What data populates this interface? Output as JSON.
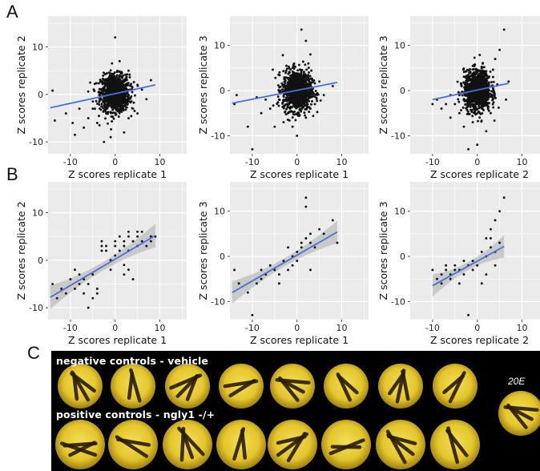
{
  "figure": {
    "panel_a_letter": "A",
    "panel_b_letter": "B",
    "panel_c_letter": "C"
  },
  "colors": {
    "plot_background": "#ebebeb",
    "grid": "#ffffff",
    "point": "#111111",
    "fit_line": "#4a6fd6",
    "confidence_band": "#bdbdbd",
    "well_yellow": "#e6cc33"
  },
  "chart_data": [
    {
      "id": "A1",
      "type": "scatter",
      "xlabel": "Z scores replicate 1",
      "ylabel": "Z scores replicate 2",
      "xlim": [
        -15,
        16
      ],
      "ylim": [
        -12.5,
        16.5
      ],
      "xticks": [
        -10,
        0,
        10
      ],
      "yticks": [
        -10,
        0,
        10
      ],
      "grid": true,
      "fit": {
        "x": [
          -14.5,
          9
        ],
        "y": [
          -2.8,
          2.0
        ]
      },
      "confidence_band": false,
      "points": {
        "cloud": {
          "n": 1100,
          "cx": 0,
          "cy": 0.3,
          "sx": 1.6,
          "sy": 1.9
        },
        "outliers": [
          [
            -13.5,
            -5.5
          ],
          [
            -14,
            0.8
          ],
          [
            -9,
            -8.5
          ],
          [
            -7,
            -7
          ],
          [
            -6,
            -5
          ],
          [
            -5,
            -3
          ],
          [
            -4,
            -6
          ],
          [
            -3,
            -2
          ],
          [
            -2,
            -4
          ],
          [
            -8,
            -3
          ],
          [
            -5,
            -1.5
          ],
          [
            -3.5,
            -6.5
          ],
          [
            -1,
            -9
          ],
          [
            0,
            12
          ],
          [
            1,
            7
          ],
          [
            3,
            -5
          ],
          [
            4,
            -3
          ],
          [
            5,
            2
          ],
          [
            6,
            1
          ],
          [
            8,
            3
          ],
          [
            7,
            -1
          ],
          [
            -11,
            -4
          ],
          [
            -9.5,
            -6
          ],
          [
            2,
            -8
          ],
          [
            -2.5,
            -10
          ],
          [
            5,
            -4
          ],
          [
            3,
            5
          ]
        ]
      }
    },
    {
      "id": "A2",
      "type": "scatter",
      "xlabel": "Z scores replicate 1",
      "ylabel": "Z scores replicate 3",
      "xlim": [
        -15,
        16
      ],
      "ylim": [
        -14,
        16.5
      ],
      "xticks": [
        -10,
        0,
        10
      ],
      "yticks": [
        -10,
        0,
        10
      ],
      "grid": true,
      "fit": {
        "x": [
          -14.5,
          9
        ],
        "y": [
          -2.8,
          1.8
        ]
      },
      "confidence_band": false,
      "points": {
        "cloud": {
          "n": 1100,
          "cx": 0,
          "cy": 0,
          "sx": 1.6,
          "sy": 2.2
        },
        "outliers": [
          [
            -13.5,
            -1
          ],
          [
            -14,
            -3
          ],
          [
            -11,
            -8
          ],
          [
            -10,
            -13
          ],
          [
            -8,
            -5
          ],
          [
            -6,
            -4
          ],
          [
            -4,
            -2
          ],
          [
            -3,
            -7
          ],
          [
            -2,
            -5
          ],
          [
            -1,
            -8
          ],
          [
            1,
            13.5
          ],
          [
            2,
            11
          ],
          [
            3,
            8
          ],
          [
            4,
            -3
          ],
          [
            5,
            2
          ],
          [
            6,
            -1
          ],
          [
            8,
            1
          ],
          [
            -7,
            -2
          ],
          [
            -5,
            -8
          ],
          [
            0,
            -10
          ],
          [
            2,
            -6
          ],
          [
            -9,
            -1.5
          ]
        ]
      }
    },
    {
      "id": "A3",
      "type": "scatter",
      "xlabel": "Z scores replicate 2",
      "ylabel": "Z scores replicate 3",
      "xlim": [
        -15,
        16
      ],
      "ylim": [
        -14,
        16.5
      ],
      "xticks": [
        -10,
        0,
        10
      ],
      "yticks": [
        -10,
        0,
        10
      ],
      "grid": true,
      "fit": {
        "x": [
          -10,
          7
        ],
        "y": [
          -2.0,
          1.6
        ]
      },
      "confidence_band": false,
      "points": {
        "cloud": {
          "n": 1100,
          "cx": 0,
          "cy": 0,
          "sx": 1.5,
          "sy": 2.2
        },
        "outliers": [
          [
            -10,
            -3
          ],
          [
            -9,
            -2
          ],
          [
            -8,
            -4
          ],
          [
            -7,
            -3
          ],
          [
            -6,
            -6
          ],
          [
            -5,
            -3
          ],
          [
            -4,
            -1
          ],
          [
            -3,
            -8
          ],
          [
            -2,
            -13
          ],
          [
            -1,
            -7
          ],
          [
            6,
            13.5
          ],
          [
            5,
            9
          ],
          [
            4,
            7
          ],
          [
            3,
            -5
          ],
          [
            2,
            -9
          ],
          [
            -6,
            -1
          ],
          [
            -4,
            -5
          ],
          [
            7,
            2
          ],
          [
            0,
            -12
          ]
        ]
      }
    },
    {
      "id": "B1",
      "type": "scatter",
      "xlabel": "Z scores replicate 1",
      "ylabel": "Z scores replicate 2",
      "xlim": [
        -15,
        16
      ],
      "ylim": [
        -12.5,
        16.5
      ],
      "xticks": [
        -10,
        0,
        10
      ],
      "yticks": [
        -10,
        0,
        10
      ],
      "grid": true,
      "fit": {
        "x": [
          -14.5,
          9
        ],
        "y": [
          -7.8,
          5.2
        ]
      },
      "confidence_band": true,
      "points": [
        [
          -14,
          -5
        ],
        [
          -13,
          -8
        ],
        [
          -12,
          -6
        ],
        [
          -11,
          -7
        ],
        [
          -10,
          -4
        ],
        [
          -9,
          -6
        ],
        [
          -9,
          -2
        ],
        [
          -8,
          -5
        ],
        [
          -8,
          -3
        ],
        [
          -7,
          -7
        ],
        [
          -7,
          -4
        ],
        [
          -6,
          -10
        ],
        [
          -6,
          -5
        ],
        [
          -5,
          -3
        ],
        [
          -5,
          -8
        ],
        [
          -4,
          -6
        ],
        [
          -3,
          2
        ],
        [
          -3,
          3
        ],
        [
          -3,
          4
        ],
        [
          -2,
          2
        ],
        [
          -2,
          3
        ],
        [
          -1,
          0
        ],
        [
          -1,
          -2
        ],
        [
          0,
          1
        ],
        [
          0,
          3
        ],
        [
          0,
          4
        ],
        [
          1,
          2
        ],
        [
          2,
          3
        ],
        [
          2,
          4
        ],
        [
          2,
          -1
        ],
        [
          3,
          5
        ],
        [
          3,
          6
        ],
        [
          3,
          2
        ],
        [
          3,
          -2
        ],
        [
          4,
          4
        ],
        [
          4,
          -4
        ],
        [
          5,
          3
        ],
        [
          5,
          6
        ],
        [
          5,
          5
        ],
        [
          6,
          4
        ],
        [
          7,
          3
        ],
        [
          8,
          5
        ],
        [
          8,
          4
        ],
        [
          9,
          5
        ],
        [
          2,
          -3
        ],
        [
          -4,
          -7
        ],
        [
          1,
          5
        ],
        [
          6,
          6
        ]
      ]
    },
    {
      "id": "B2",
      "type": "scatter",
      "xlabel": "Z scores replicate 1",
      "ylabel": "Z scores replicate 3",
      "xlim": [
        -15,
        16
      ],
      "ylim": [
        -14,
        16.5
      ],
      "xticks": [
        -10,
        0,
        10
      ],
      "yticks": [
        -10,
        0,
        10
      ],
      "grid": true,
      "fit": {
        "x": [
          -14.5,
          9
        ],
        "y": [
          -8.0,
          5.4
        ]
      },
      "confidence_band": true,
      "points": [
        [
          -14,
          -3
        ],
        [
          -13,
          -6
        ],
        [
          -11,
          -8
        ],
        [
          -10,
          -13
        ],
        [
          -9,
          -6
        ],
        [
          -8,
          -3
        ],
        [
          -8,
          -5
        ],
        [
          -7,
          -4
        ],
        [
          -6,
          -2
        ],
        [
          -5,
          -3
        ],
        [
          -4,
          -6
        ],
        [
          -4,
          -4
        ],
        [
          -3,
          -1
        ],
        [
          -2,
          -3
        ],
        [
          -2,
          2
        ],
        [
          -1,
          -2
        ],
        [
          0,
          1
        ],
        [
          0,
          -1
        ],
        [
          1,
          2
        ],
        [
          1,
          3
        ],
        [
          2,
          13
        ],
        [
          2,
          11
        ],
        [
          2,
          4
        ],
        [
          3,
          5
        ],
        [
          3,
          3
        ],
        [
          4,
          2
        ],
        [
          5,
          6
        ],
        [
          6,
          5
        ],
        [
          8,
          8
        ],
        [
          9,
          3
        ],
        [
          3,
          -3
        ],
        [
          -1,
          0
        ]
      ]
    },
    {
      "id": "B3",
      "type": "scatter",
      "xlabel": "Z scores replicate 2",
      "ylabel": "Z scores replicate 3",
      "xlim": [
        -15,
        16
      ],
      "ylim": [
        -14,
        16.5
      ],
      "xticks": [
        -10,
        0,
        10
      ],
      "yticks": [
        -10,
        0,
        10
      ],
      "grid": true,
      "fit": {
        "x": [
          -10,
          6
        ],
        "y": [
          -6.5,
          2.2
        ]
      },
      "confidence_band": true,
      "points": [
        [
          -10,
          -3
        ],
        [
          -9,
          -5
        ],
        [
          -8,
          -4
        ],
        [
          -8,
          -6
        ],
        [
          -7,
          -3
        ],
        [
          -7,
          -2
        ],
        [
          -6,
          -4
        ],
        [
          -6,
          -5
        ],
        [
          -5,
          -2
        ],
        [
          -5,
          -3
        ],
        [
          -4,
          -3
        ],
        [
          -4,
          -6
        ],
        [
          -3,
          -4
        ],
        [
          -3,
          -1
        ],
        [
          -2,
          -13
        ],
        [
          -2,
          -2
        ],
        [
          -1,
          -3
        ],
        [
          0,
          -2
        ],
        [
          1,
          1
        ],
        [
          1,
          -6
        ],
        [
          2,
          4
        ],
        [
          2,
          0
        ],
        [
          3,
          4
        ],
        [
          3,
          2
        ],
        [
          3,
          6
        ],
        [
          4,
          8
        ],
        [
          4,
          -2
        ],
        [
          5,
          3
        ],
        [
          5,
          10
        ],
        [
          6,
          13
        ],
        [
          -1,
          -1
        ],
        [
          2,
          -4
        ],
        [
          4,
          1
        ]
      ]
    }
  ],
  "photos": {
    "row1_label": "negative controls - vehicle",
    "row2_label": "positive controls - ngly1 -/+",
    "extra_label": "20E",
    "row1_wells": 8,
    "row2_wells": 8
  }
}
